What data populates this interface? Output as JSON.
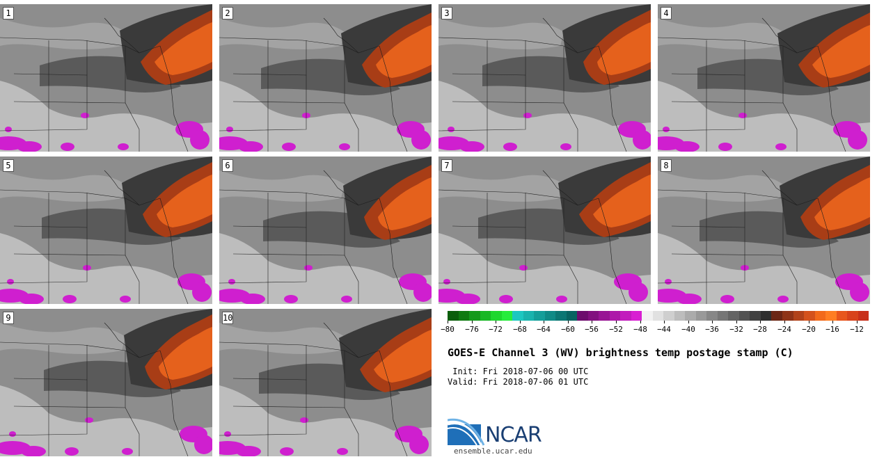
{
  "panels": [
    {
      "label": "1"
    },
    {
      "label": "2"
    },
    {
      "label": "3"
    },
    {
      "label": "4"
    },
    {
      "label": "5"
    },
    {
      "label": "6"
    },
    {
      "label": "7"
    },
    {
      "label": "8"
    },
    {
      "label": "9"
    },
    {
      "label": "10"
    }
  ],
  "chart_data": {
    "type": "heatmap",
    "title": "GOES-E Channel 3 (WV) brightness temp postage stamp (C)",
    "units": "C",
    "colorbar": {
      "min": -80,
      "max": -10,
      "tick_values": [
        -80,
        -76,
        -72,
        -68,
        -64,
        -60,
        -56,
        -52,
        -48,
        -44,
        -40,
        -36,
        -32,
        -28,
        -24,
        -20,
        -16,
        -12
      ],
      "tick_labels": [
        "−80",
        "−76",
        "−72",
        "−68",
        "−64",
        "−60",
        "−56",
        "−52",
        "−48",
        "−44",
        "−40",
        "−36",
        "−32",
        "−28",
        "−24",
        "−20",
        "−16",
        "−12"
      ],
      "colors": [
        "#0b5e0b",
        "#0f7a10",
        "#14991a",
        "#18b824",
        "#1ed72e",
        "#26ec3c",
        "#1cc7c0",
        "#19b3ad",
        "#149e99",
        "#0f8a86",
        "#0b7673",
        "#086361",
        "#6d0c6d",
        "#82107f",
        "#981494",
        "#ad18a9",
        "#c21cbd",
        "#d81fd2",
        "#f2f2f2",
        "#e1e1e1",
        "#cfcfcf",
        "#bdbdbd",
        "#ababab",
        "#999999",
        "#878787",
        "#767676",
        "#646464",
        "#525252",
        "#404040",
        "#2e2e2e",
        "#6b2615",
        "#8e3317",
        "#b1421a",
        "#d4521c",
        "#f26a1b",
        "#ff7e22",
        "#e8561c",
        "#d8421b",
        "#c8301a"
      ]
    }
  },
  "init_line": " Init: Fri 2018-07-06 00 UTC",
  "valid_line": "Valid: Fri 2018-07-06 01 UTC",
  "logo": {
    "wordmark": "NCAR",
    "url": "ensemble.ucar.edu",
    "brand_color": "#1a3f73",
    "arc_color": "#2a7fc8"
  },
  "map_colors": {
    "background": "#8d8d8d",
    "dark_band": "#5a5a5a",
    "darker_band": "#3a3a3a",
    "light_patch": "#bdbdbd",
    "very_light_patch": "#e6e6e6",
    "orange_core": "#e5611c",
    "orange_edge": "#a83d16",
    "magenta": "#cf1fcf",
    "border_lines": "#1e1e1e"
  }
}
